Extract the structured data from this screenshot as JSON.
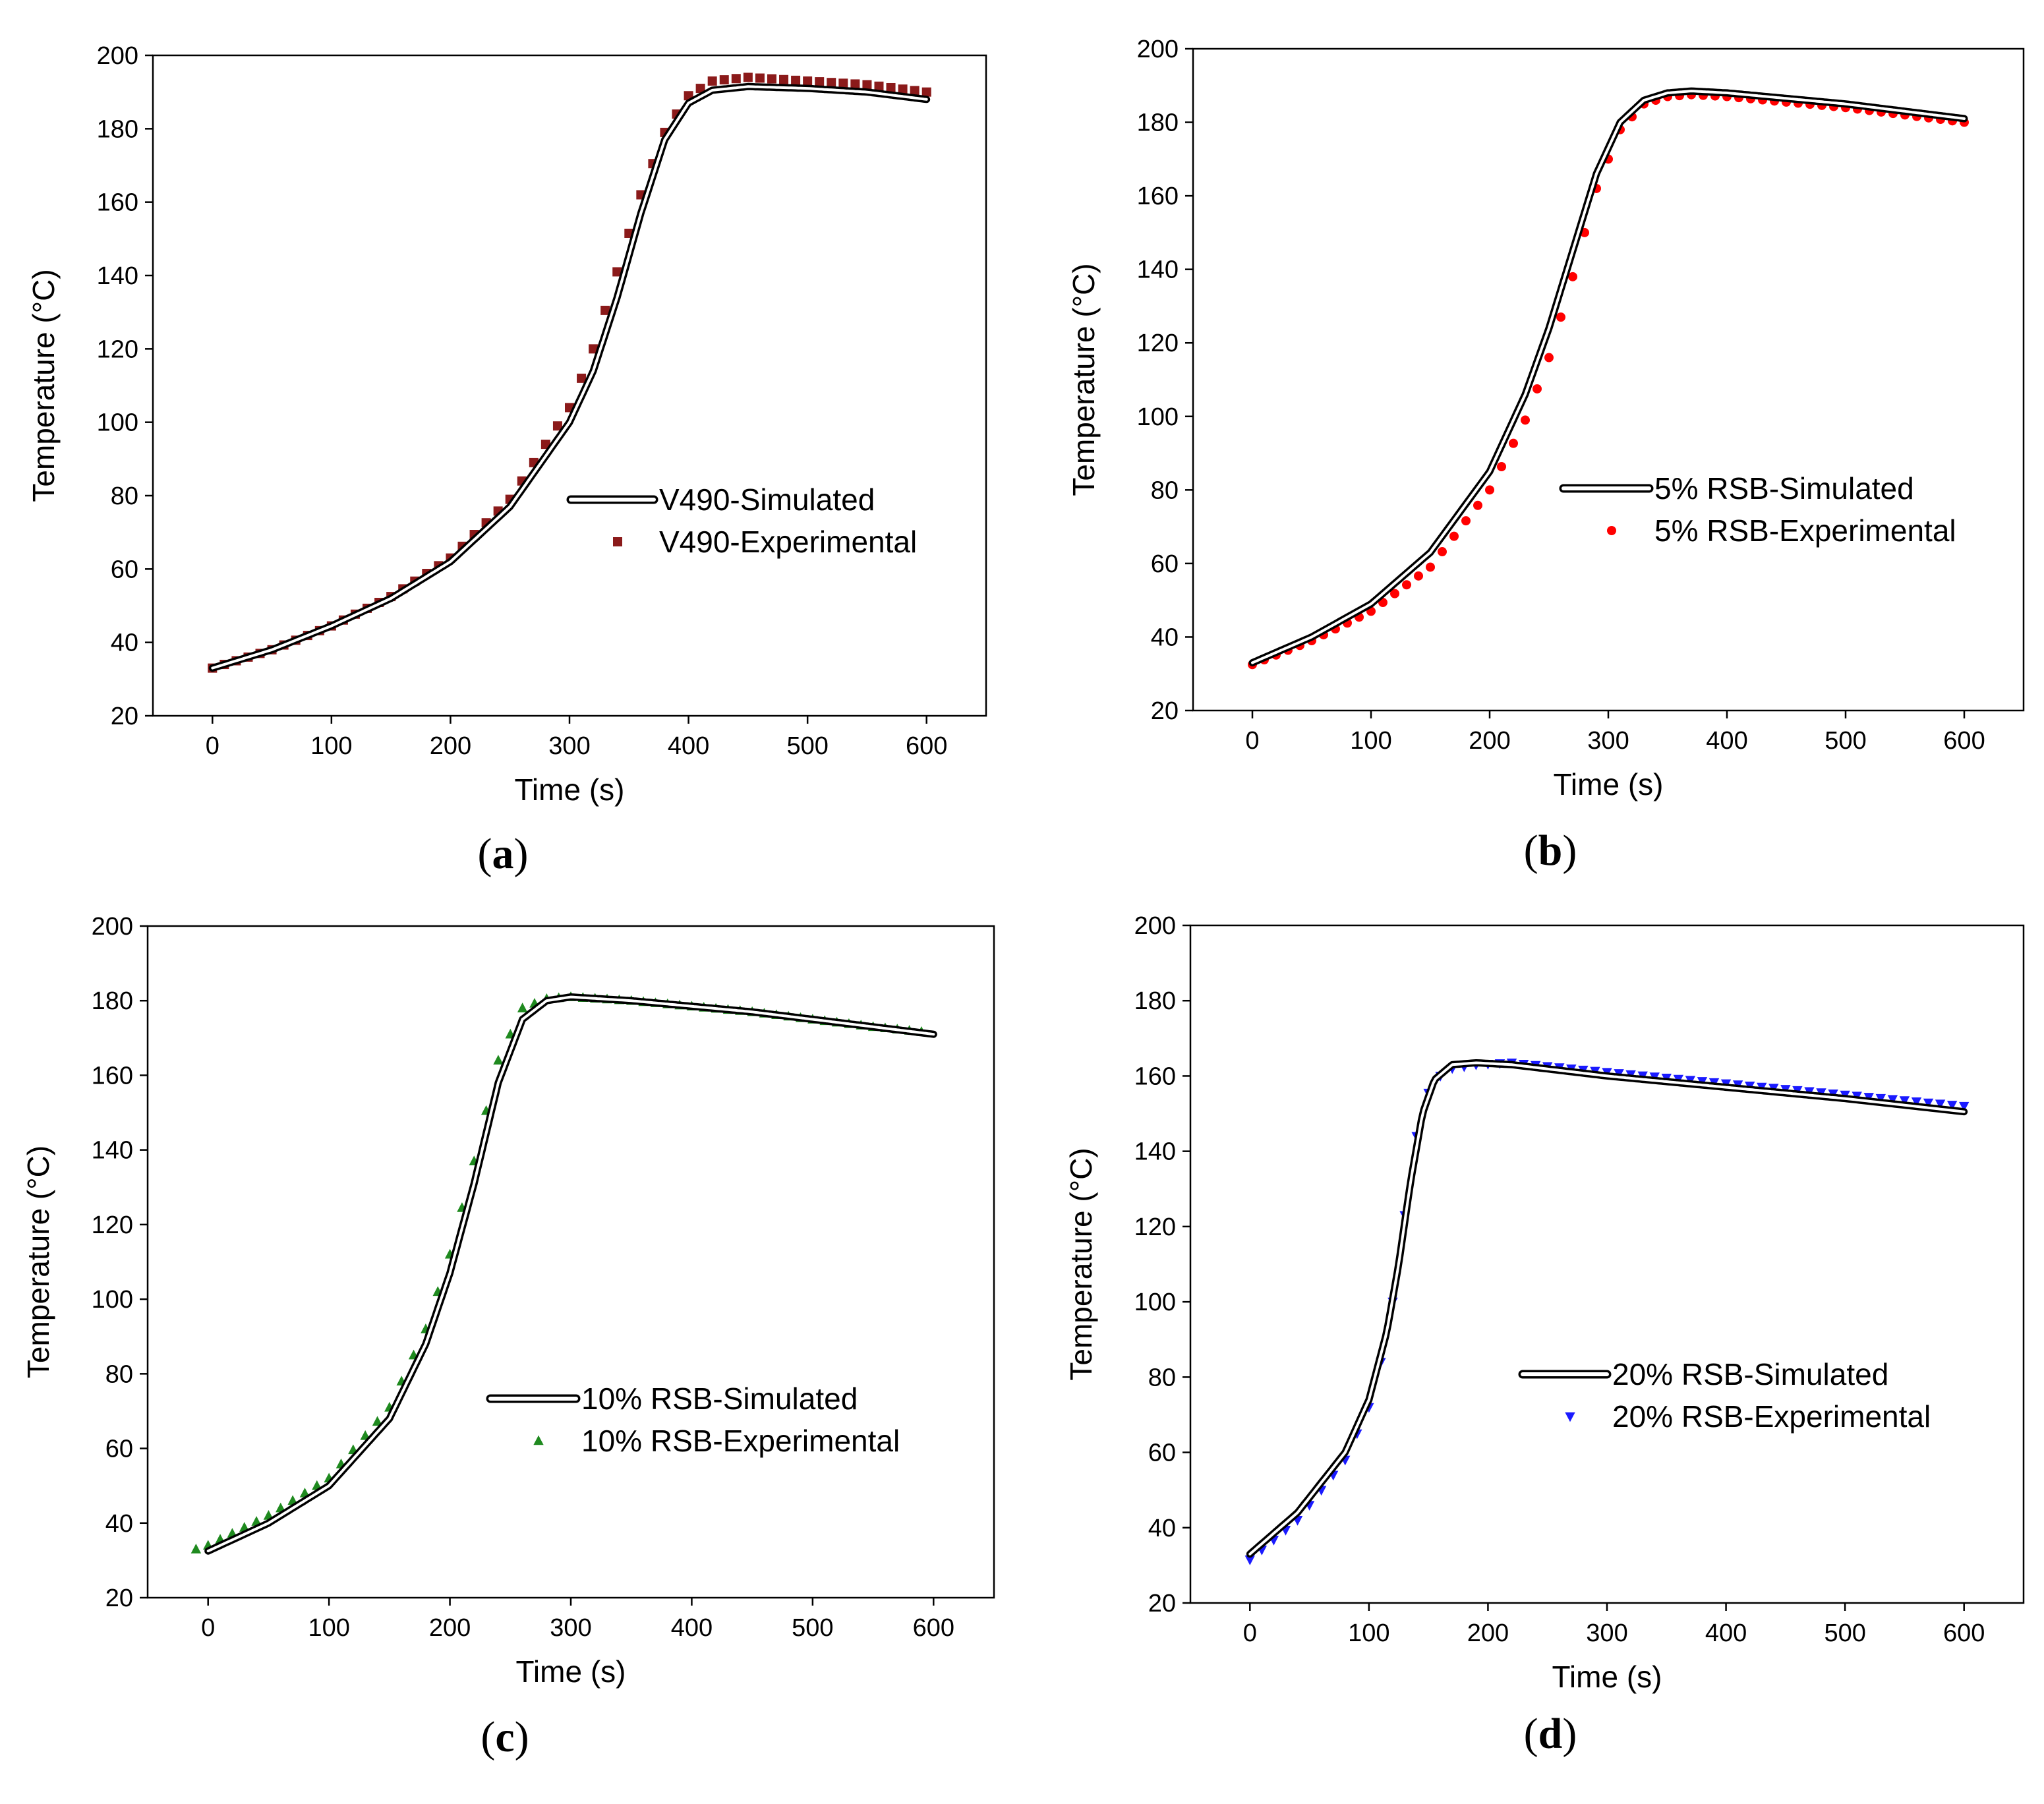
{
  "chart_data": [
    {
      "type": "line",
      "panel": "a",
      "caption_letter": "a",
      "xlabel": "Time (s)",
      "ylabel": "Temperature (°C)",
      "xlim": [
        -50,
        650
      ],
      "ylim": [
        20,
        200
      ],
      "xticks": [
        0,
        100,
        200,
        300,
        400,
        500,
        600
      ],
      "yticks": [
        20,
        40,
        60,
        80,
        100,
        120,
        140,
        160,
        180,
        200
      ],
      "legend": "center-right",
      "exp_color": "#8b1a1a",
      "exp_marker": "square",
      "series": [
        {
          "name": "V490-Simulated",
          "x": [
            0,
            50,
            100,
            150,
            200,
            250,
            300,
            320,
            340,
            360,
            380,
            400,
            420,
            450,
            500,
            550,
            600
          ],
          "y": [
            33,
            38,
            44.5,
            52,
            62,
            77,
            100,
            114,
            134,
            157,
            177,
            187,
            190.5,
            191.5,
            191,
            190,
            188
          ]
        },
        {
          "name": "V490-Experimental",
          "x": [
            0,
            50,
            100,
            150,
            200,
            250,
            300,
            320,
            340,
            360,
            380,
            400,
            420,
            450,
            500,
            550,
            600
          ],
          "y": [
            33,
            38,
            44.5,
            52.5,
            63,
            79,
            104,
            120,
            141,
            162,
            179,
            189,
            193,
            194,
            193,
            192,
            190
          ]
        }
      ]
    },
    {
      "type": "line",
      "panel": "b",
      "caption_letter": "b",
      "xlabel": "Time (s)",
      "ylabel": "Temperature (°C)",
      "xlim": [
        -50,
        650
      ],
      "ylim": [
        20,
        200
      ],
      "xticks": [
        0,
        100,
        200,
        300,
        400,
        500,
        600
      ],
      "yticks": [
        20,
        40,
        60,
        80,
        100,
        120,
        140,
        160,
        180,
        200
      ],
      "legend": "center-right",
      "exp_color": "#ff0000",
      "exp_marker": "circle",
      "series": [
        {
          "name": "5% RSB-Simulated",
          "x": [
            0,
            50,
            100,
            150,
            200,
            230,
            250,
            270,
            290,
            310,
            330,
            350,
            370,
            400,
            450,
            500,
            550,
            600
          ],
          "y": [
            33,
            40,
            49,
            63,
            85,
            106,
            124,
            145,
            166,
            180,
            186,
            188,
            188.5,
            188,
            186.5,
            185,
            183,
            181
          ]
        },
        {
          "name": "5% RSB-Experimental",
          "x": [
            0,
            50,
            100,
            150,
            200,
            230,
            250,
            270,
            290,
            310,
            330,
            350,
            370,
            400,
            450,
            500,
            550,
            600
          ],
          "y": [
            32.5,
            39,
            47,
            59,
            80,
            99,
            116,
            138,
            162,
            178,
            185,
            187,
            187.5,
            187,
            185.5,
            184,
            182,
            180
          ]
        }
      ]
    },
    {
      "type": "line",
      "panel": "c",
      "caption_letter": "c",
      "xlabel": "Time (s)",
      "ylabel": "Temperature (°C)",
      "xlim": [
        -50,
        650
      ],
      "ylim": [
        20,
        200
      ],
      "xticks": [
        0,
        100,
        200,
        300,
        400,
        500,
        600
      ],
      "yticks": [
        20,
        40,
        60,
        80,
        100,
        120,
        140,
        160,
        180,
        200
      ],
      "legend": "lower-right",
      "exp_color": "#1f8a1f",
      "exp_marker": "triangle-up",
      "series": [
        {
          "name": "10% RSB-Simulated",
          "x": [
            0,
            50,
            100,
            150,
            180,
            200,
            220,
            240,
            260,
            280,
            300,
            350,
            400,
            450,
            500,
            550,
            600
          ],
          "y": [
            32.5,
            40,
            50,
            68,
            88,
            107,
            131,
            158,
            175,
            180,
            181,
            180,
            178.5,
            177,
            175,
            173,
            171
          ]
        },
        {
          "name": "10% RSB-Experimental",
          "x": [
            -10,
            0,
            50,
            100,
            150,
            180,
            200,
            220,
            240,
            260,
            280,
            300,
            350,
            400,
            450,
            500,
            550,
            595
          ],
          "y": [
            33,
            34,
            42,
            52,
            71,
            92,
            112,
            137,
            164,
            178,
            180.5,
            181,
            180,
            178.5,
            177,
            175,
            173,
            171.5
          ]
        }
      ]
    },
    {
      "type": "line",
      "panel": "d",
      "caption_letter": "d",
      "xlabel": "Time (s)",
      "ylabel": "Temperature (°C)",
      "xlim": [
        -50,
        650
      ],
      "ylim": [
        20,
        200
      ],
      "xticks": [
        0,
        100,
        200,
        300,
        400,
        500,
        600
      ],
      "yticks": [
        20,
        40,
        60,
        80,
        100,
        120,
        140,
        160,
        180,
        200
      ],
      "legend": "center-right",
      "exp_color": "#1a1aff",
      "exp_marker": "triangle-down",
      "series": [
        {
          "name": "20% RSB-Simulated",
          "x": [
            0,
            40,
            80,
            100,
            115,
            125,
            135,
            145,
            155,
            170,
            190,
            220,
            300,
            400,
            500,
            600
          ],
          "y": [
            33,
            44,
            60,
            74,
            92,
            110,
            132,
            150,
            159,
            163,
            163.5,
            163,
            160,
            157,
            154,
            150.5
          ]
        },
        {
          "name": "20% RSB-Experimental",
          "x": [
            0,
            40,
            80,
            100,
            115,
            125,
            135,
            145,
            155,
            170,
            190,
            220,
            300,
            400,
            500,
            600
          ],
          "y": [
            31.5,
            42,
            58,
            72,
            90,
            110,
            136,
            152,
            159,
            162,
            163,
            163.5,
            161,
            158,
            155,
            152
          ]
        }
      ]
    }
  ]
}
